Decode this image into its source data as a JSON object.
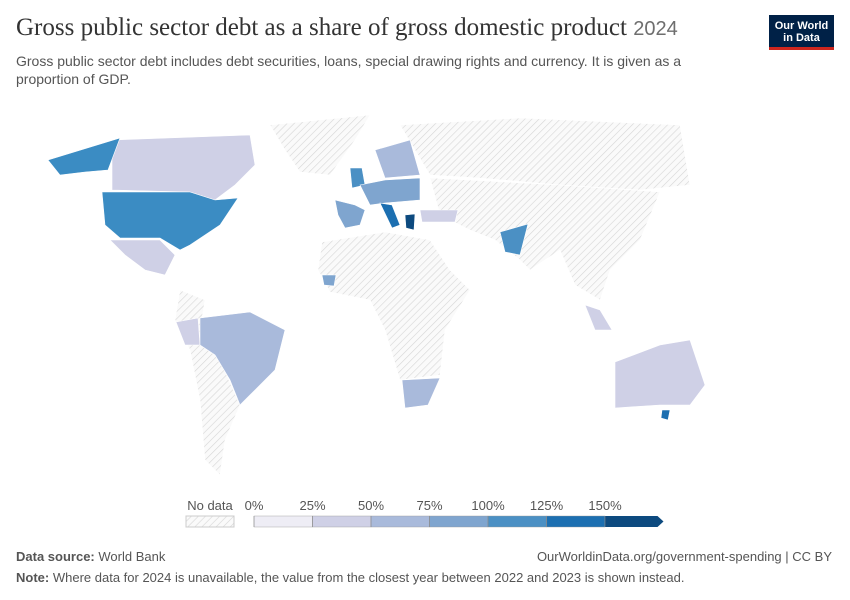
{
  "header": {
    "title": "Gross public sector debt as a share of gross domestic product",
    "year": "2024",
    "subtitle": "Gross public sector debt includes debt securities, loans, special drawing rights and currency. It is given as a proportion of GDP.",
    "logo": [
      "Our World",
      "in Data"
    ]
  },
  "legend": {
    "no_data": "No data",
    "labels": [
      "0%",
      "25%",
      "50%",
      "75%",
      "100%",
      "125%",
      "150%"
    ],
    "colors": [
      "#eeedf5",
      "#cfd0e6",
      "#a9badb",
      "#7fa5cf",
      "#4b90c4",
      "#1c6fb1",
      "#0d4a7f"
    ]
  },
  "footer": {
    "source_label": "Data source:",
    "source": "World Bank",
    "url": "OurWorldinData.org/government-spending | CC BY",
    "note_label": "Note:",
    "note": "Where data for 2024 is unavailable, the value from the closest year between 2022 and 2023 is shown instead."
  }
}
